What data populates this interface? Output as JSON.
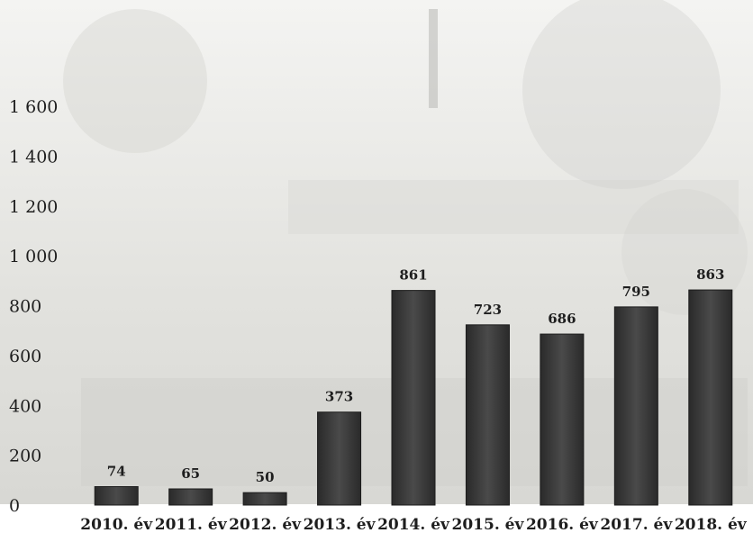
{
  "chart_data": {
    "type": "bar",
    "categories": [
      "2010. év",
      "2011. év",
      "2012. év",
      "2013. év",
      "2014. év",
      "2015. év",
      "2016. év",
      "2017. év",
      "2018. év"
    ],
    "values": [
      74,
      65,
      50,
      373,
      861,
      723,
      686,
      795,
      863
    ],
    "data_labels": [
      "74",
      "65",
      "50",
      "373",
      "861",
      "723",
      "686",
      "795",
      "863"
    ],
    "y_ticks": [
      0,
      200,
      400,
      600,
      800,
      1000,
      1200,
      1400,
      1600
    ],
    "y_tick_labels": [
      "0",
      "200",
      "400",
      "600",
      "800",
      "1 000",
      "1 200",
      "1 400",
      "1 600"
    ],
    "ylim": [
      0,
      1600
    ],
    "grid": false,
    "legend": "none",
    "bar_color": "#3a3a3a"
  }
}
